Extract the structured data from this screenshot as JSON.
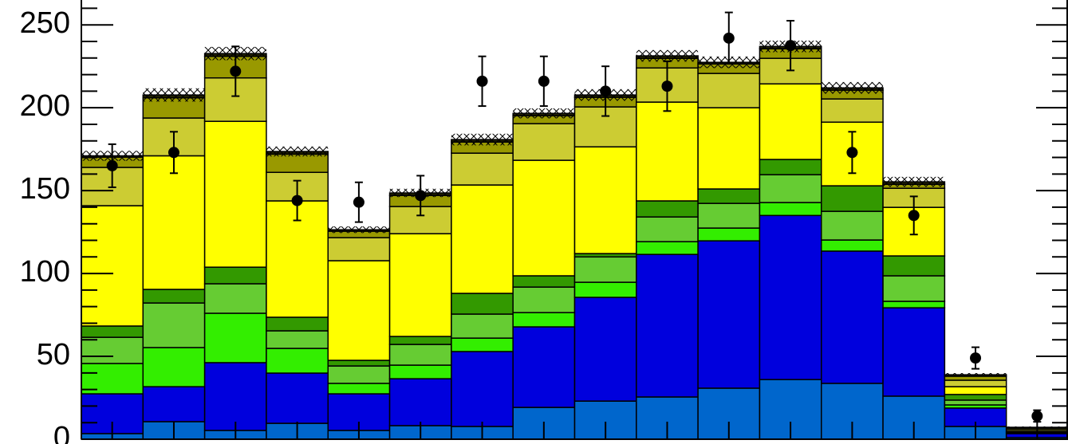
{
  "chart_data": {
    "type": "bar",
    "stacked": true,
    "categories": [
      null,
      null,
      null,
      null,
      null,
      null,
      null,
      null,
      null,
      null,
      null,
      null,
      null,
      null,
      null,
      null
    ],
    "ylim": [
      0,
      265
    ],
    "yticks": [
      0,
      50,
      100,
      150,
      200,
      250
    ],
    "yminorticks": [
      10,
      20,
      30,
      40,
      60,
      70,
      80,
      90,
      110,
      120,
      130,
      140,
      160,
      170,
      180,
      190,
      210,
      220,
      230,
      240,
      260
    ],
    "series": [
      {
        "color": "#0066cc",
        "values": [
          3.4,
          10.6,
          5.3,
          9.6,
          5.3,
          8.2,
          7.7,
          19.2,
          23,
          25.5,
          30.8,
          36,
          33.7,
          26,
          7.7,
          1
        ]
      },
      {
        "color": "#0000dd",
        "values": [
          24,
          21.1,
          40.9,
          30.3,
          22.1,
          28.3,
          45.2,
          48.6,
          62.6,
          86,
          88.9,
          99,
          79.8,
          53.3,
          11.1,
          2.4
        ]
      },
      {
        "color": "#33ee00",
        "values": [
          18.3,
          23.6,
          29.8,
          14.9,
          6.3,
          8.2,
          8.1,
          8.6,
          9.1,
          7.7,
          7.7,
          7.8,
          6.7,
          3.9,
          1.9,
          0.4
        ]
      },
      {
        "color": "#66cc33",
        "values": [
          15.8,
          26.9,
          17.8,
          10.6,
          10.5,
          12.5,
          14.5,
          15.4,
          15.3,
          14.9,
          14.9,
          16.8,
          17.3,
          15.4,
          2.9,
          0.5
        ]
      },
      {
        "color": "#339900",
        "values": [
          6.8,
          8.2,
          10,
          8.2,
          3.4,
          4.8,
          12.5,
          6.8,
          2,
          9.7,
          8.7,
          9.2,
          15.4,
          12,
          3.4,
          0.5
        ]
      },
      {
        "color": "#ffff00",
        "values": [
          72.6,
          80.6,
          88,
          70.2,
          60.1,
          62,
          65.4,
          69.7,
          64.4,
          59.6,
          49,
          45.6,
          38.4,
          29.3,
          4.7,
          0
        ]
      },
      {
        "color": "#cccc33",
        "values": [
          23.1,
          22.8,
          26.2,
          17.2,
          13.9,
          16.4,
          19.2,
          22.1,
          24.1,
          20.6,
          20.7,
          15.4,
          14,
          11.5,
          3.9,
          1
        ]
      },
      {
        "color": "#999900",
        "values": [
          6.2,
          12.2,
          13,
          11,
          3.9,
          6.7,
          6.7,
          4.8,
          5.8,
          5.8,
          5.7,
          5.8,
          5.3,
          2.4,
          2.4,
          0.9
        ]
      },
      {
        "color": "#222200",
        "values": [
          0.8,
          1.7,
          1.7,
          1.6,
          0.9,
          1.5,
          1.5,
          1.4,
          1.4,
          1.5,
          1,
          1.4,
          1.4,
          1.5,
          0.9,
          0.5
        ]
      }
    ],
    "uncertainty": [
      3,
      4,
      4,
      3,
      2,
      2.5,
      3.5,
      3,
      3.5,
      3.5,
      3.5,
      3.5,
      3.5,
      3,
      1,
      0.5
    ],
    "data_points": {
      "color": "#000000",
      "values": [
        165,
        173,
        222,
        144,
        143,
        147,
        216,
        216,
        210,
        213,
        242,
        237.5,
        173,
        135,
        49,
        14
      ],
      "errors": [
        13,
        12.5,
        15,
        12,
        12,
        12,
        15,
        15,
        15,
        15,
        15.5,
        15,
        12.5,
        11.5,
        6.5,
        3.5
      ]
    }
  }
}
